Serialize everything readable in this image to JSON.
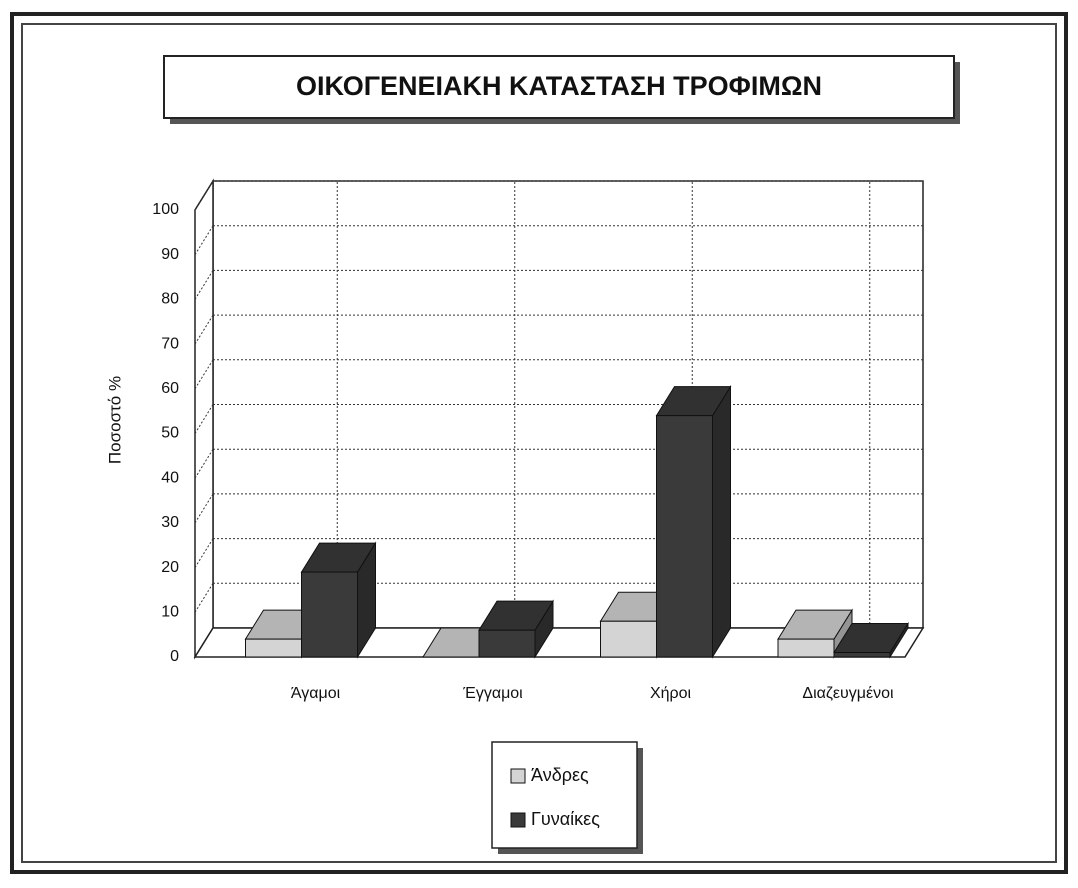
{
  "chart_data": {
    "type": "bar3d",
    "title": "ΟΙΚΟΓΕΝΕΙΑΚΗ ΚΑΤΑΣΤΑΣΗ ΤΡΟΦΙΜΩΝ",
    "y_label": "Ποσοστό %",
    "categories": [
      "Άγαμοι",
      "Έγγαμοι",
      "Χήροι",
      "Διαζευγμένοι"
    ],
    "series": [
      {
        "name": "Άνδρες",
        "color": "#d4d4d4",
        "values": [
          4,
          0,
          8,
          4
        ]
      },
      {
        "name": "Γυναίκες",
        "color": "#3a3a3a",
        "values": [
          19,
          6,
          54,
          1
        ]
      }
    ],
    "ylim": [
      0,
      100
    ],
    "yticks": [
      0,
      10,
      20,
      30,
      40,
      50,
      60,
      70,
      80,
      90,
      100
    ],
    "grid": true,
    "legend": "bottom"
  }
}
